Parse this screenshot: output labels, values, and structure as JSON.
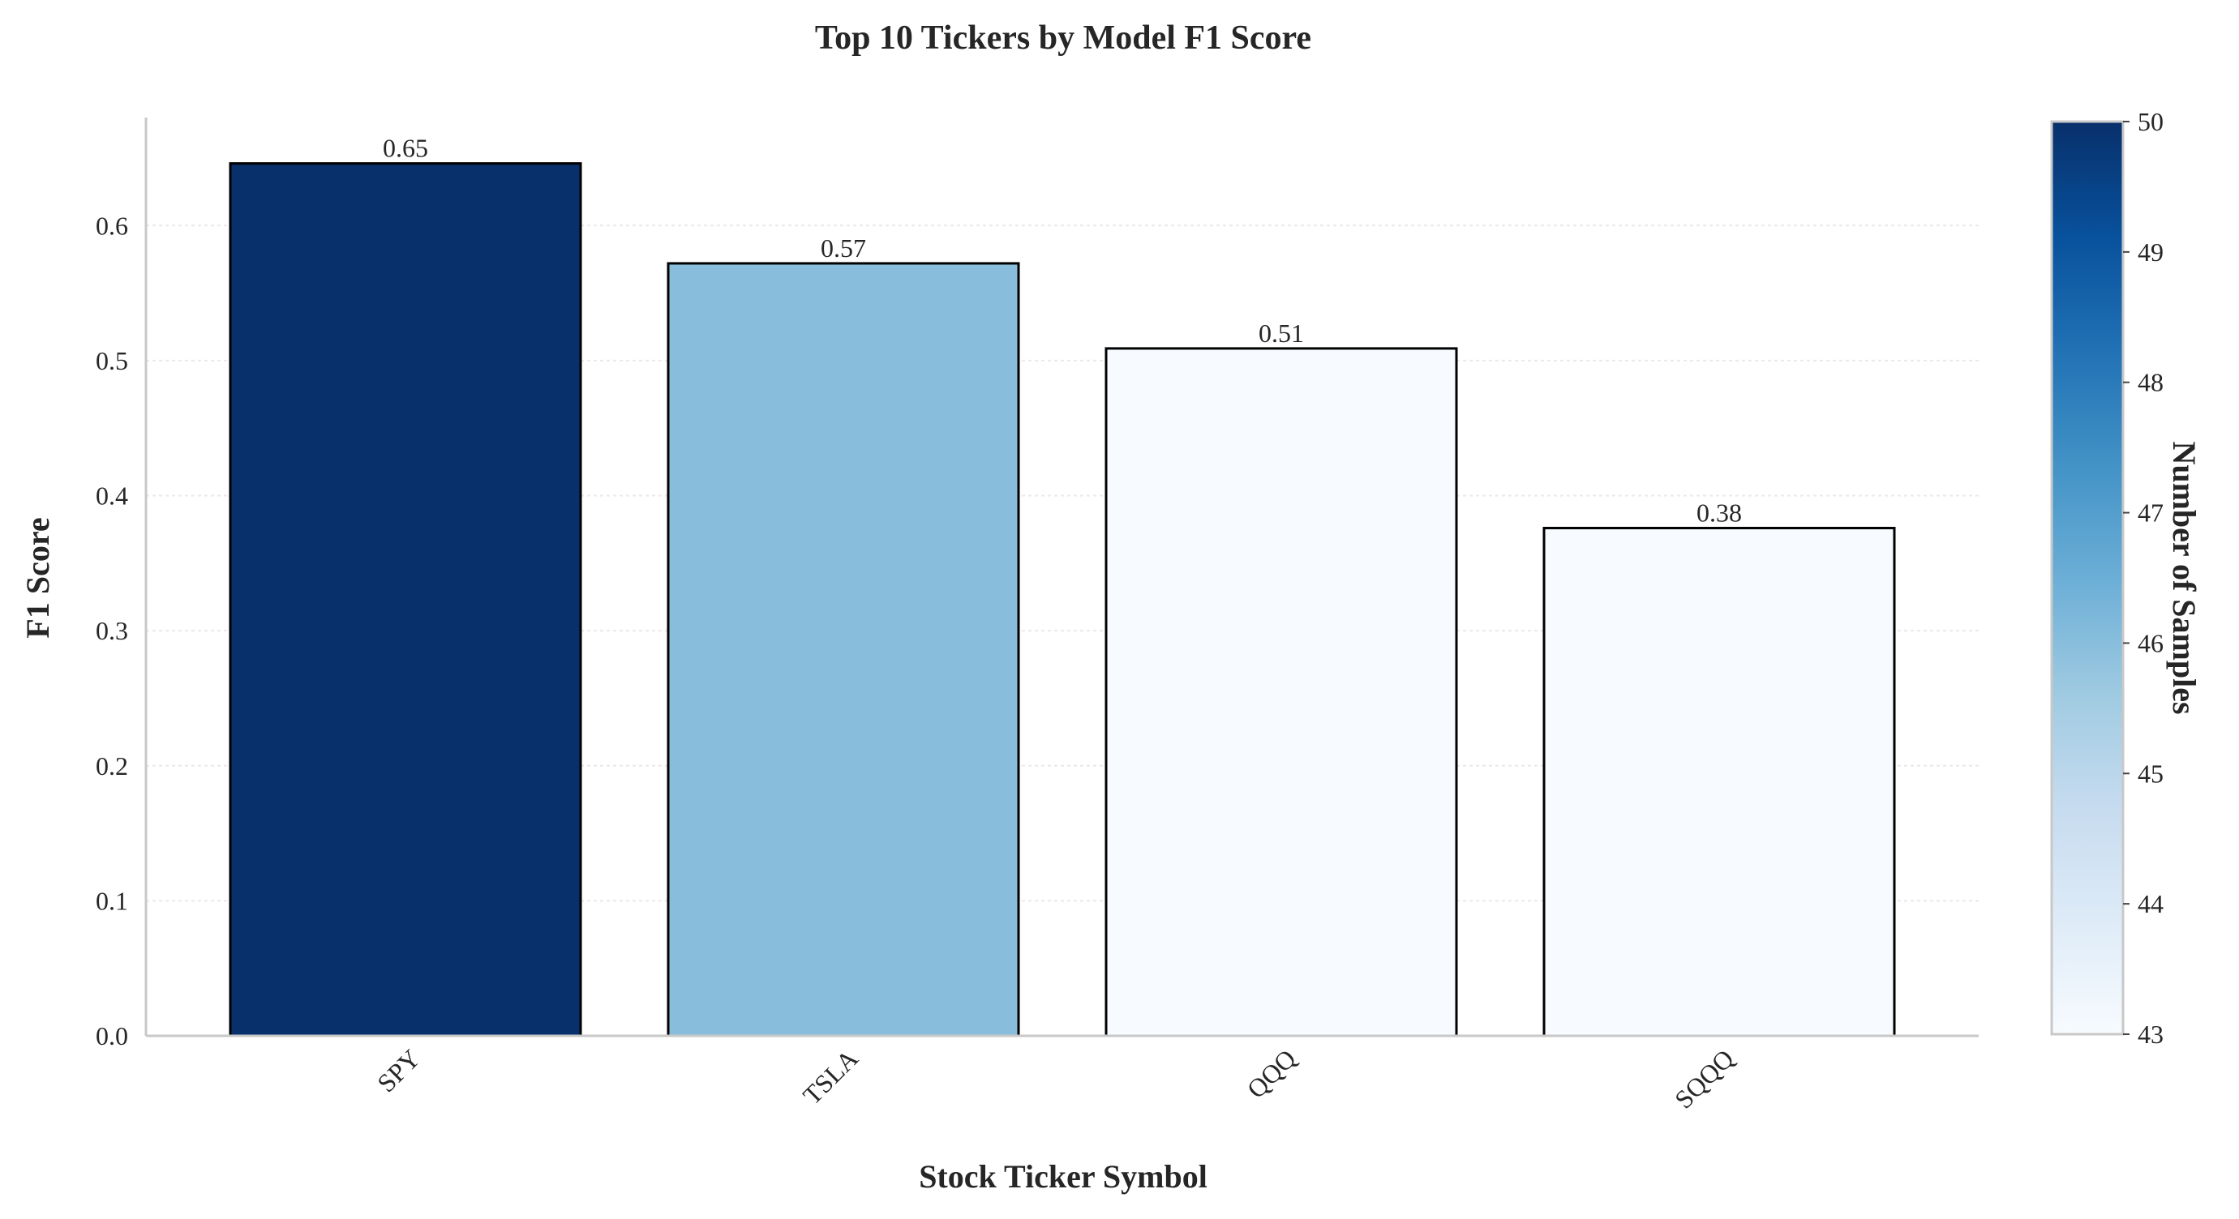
{
  "chart_data": {
    "type": "bar",
    "title": "Top 10 Tickers by Model F1 Score",
    "xlabel": "Stock Ticker Symbol",
    "ylabel": "F1 Score",
    "categories": [
      "SPY",
      "TSLA",
      "QQQ",
      "SQQQ"
    ],
    "values": [
      0.646,
      0.572,
      0.509,
      0.376
    ],
    "value_labels": [
      "0.65",
      "0.57",
      "0.51",
      "0.38"
    ],
    "samples": [
      50,
      46,
      43,
      43
    ],
    "ylim": [
      0,
      0.68
    ],
    "yticks": [
      0.0,
      0.1,
      0.2,
      0.3,
      0.4,
      0.5,
      0.6
    ],
    "ytick_labels": [
      "0.0",
      "0.1",
      "0.2",
      "0.3",
      "0.4",
      "0.5",
      "0.6"
    ],
    "grid": true,
    "colorbar": {
      "label": "Number of Samples",
      "min": 43,
      "max": 50,
      "ticks": [
        "43",
        "44",
        "45",
        "46",
        "47",
        "48",
        "49",
        "50"
      ],
      "colormap": "Blues",
      "colors": [
        "#f7fbff",
        "#deebf7",
        "#c6dbef",
        "#9ecae1",
        "#6baed6",
        "#4292c6",
        "#2171b5",
        "#08519c",
        "#08306b"
      ]
    },
    "bar_edge_color": "#000000"
  }
}
